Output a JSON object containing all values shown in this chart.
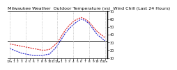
{
  "title": "Milwaukee Weather  Outdoor Temperature (vs)  Wind Chill (Last 24 Hours)",
  "outdoor_temp": [
    28,
    27,
    26,
    25,
    24,
    23,
    22,
    21,
    20,
    20,
    21,
    25,
    30,
    38,
    46,
    52,
    57,
    60,
    62,
    60,
    56,
    50,
    44,
    40,
    36
  ],
  "wind_chill": [
    22,
    20,
    18,
    16,
    15,
    14,
    13,
    13,
    13,
    14,
    15,
    20,
    26,
    34,
    42,
    48,
    53,
    57,
    60,
    58,
    54,
    47,
    40,
    36,
    32
  ],
  "ref_line": 32,
  "ylim": [
    10,
    70
  ],
  "yticks": [
    10,
    20,
    30,
    40,
    50,
    60,
    70
  ],
  "n_points": 25,
  "outdoor_color": "#dd2222",
  "windchill_color": "#2222cc",
  "ref_color": "#000000",
  "bg_color": "#ffffff",
  "grid_color": "#aaaaaa",
  "title_color": "#000000",
  "title_fontsize": 4.5,
  "tick_fontsize": 3.5,
  "line_width": 0.8
}
